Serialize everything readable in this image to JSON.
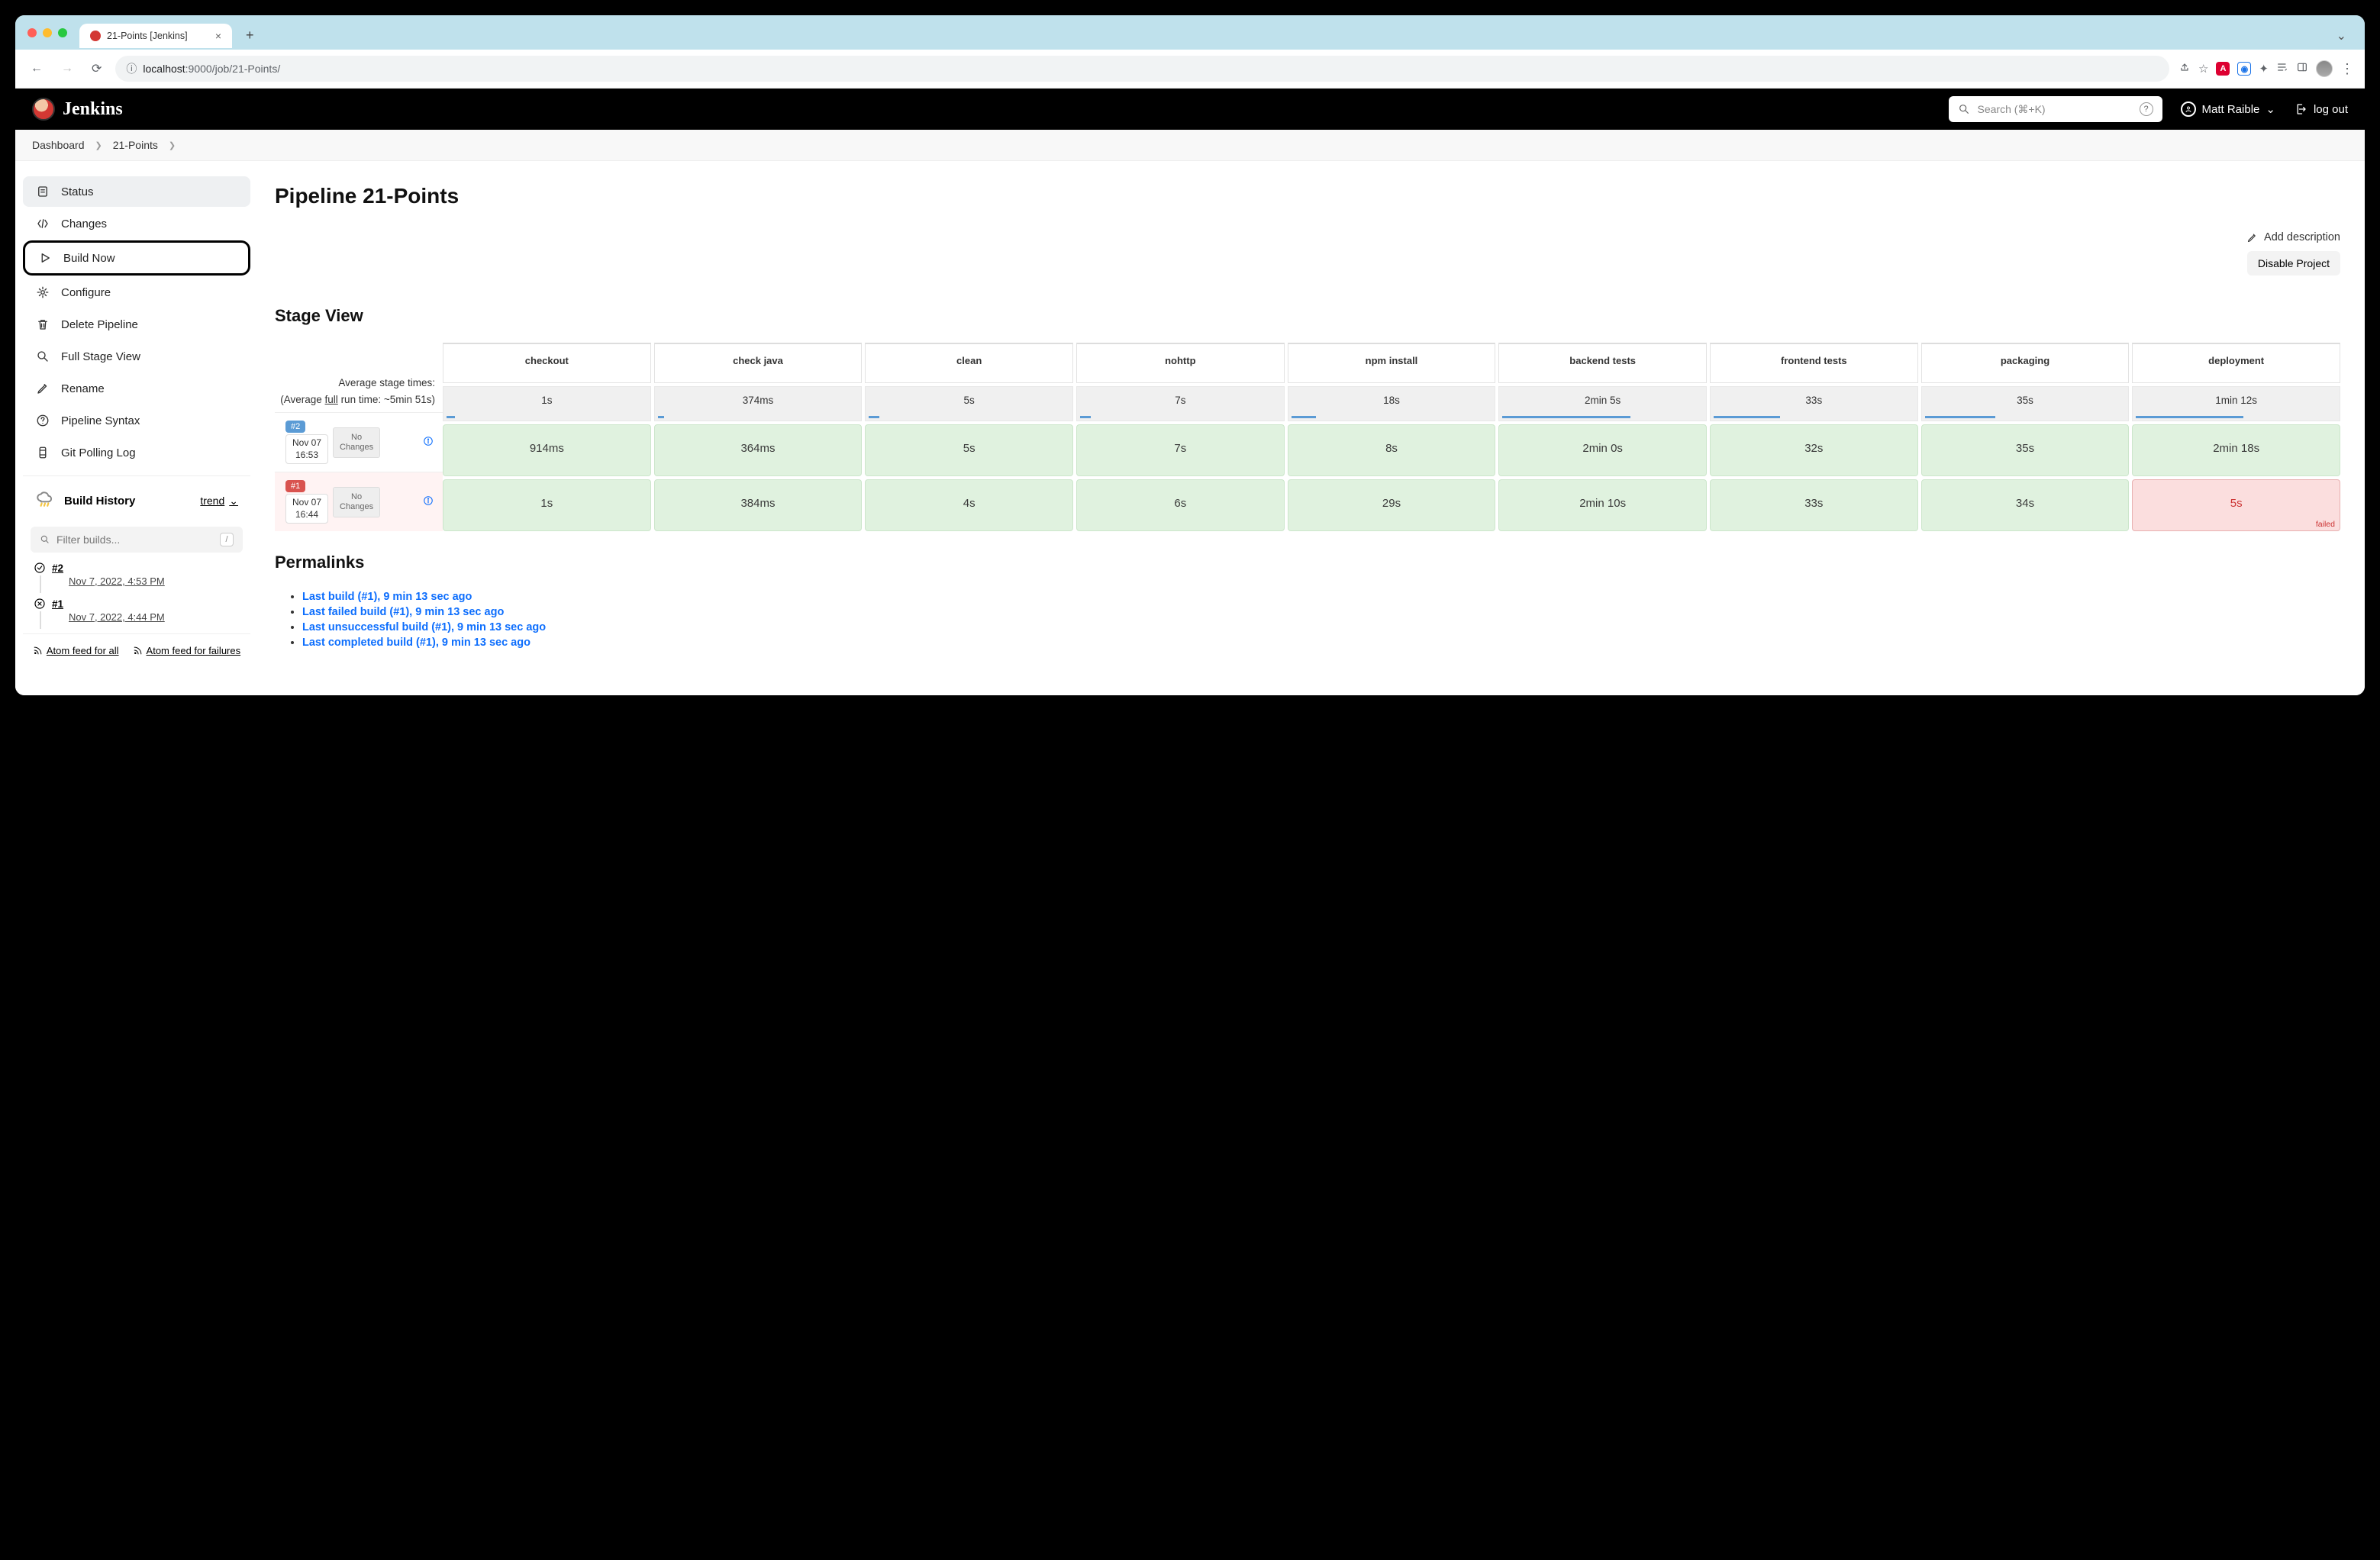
{
  "browser": {
    "tab_title": "21-Points [Jenkins]",
    "url_host": "localhost",
    "url_port": ":9000",
    "url_path": "/job/21-Points/"
  },
  "header": {
    "brand": "Jenkins",
    "search_placeholder": "Search (⌘+K)",
    "user": "Matt Raible",
    "logout": "log out"
  },
  "crumbs": [
    "Dashboard",
    "21-Points"
  ],
  "sidebar": {
    "items": [
      {
        "label": "Status",
        "icon": "status-icon"
      },
      {
        "label": "Changes",
        "icon": "changes-icon"
      },
      {
        "label": "Build Now",
        "icon": "play-icon"
      },
      {
        "label": "Configure",
        "icon": "gear-icon"
      },
      {
        "label": "Delete Pipeline",
        "icon": "trash-icon"
      },
      {
        "label": "Full Stage View",
        "icon": "search-icon"
      },
      {
        "label": "Rename",
        "icon": "pencil-icon"
      },
      {
        "label": "Pipeline Syntax",
        "icon": "help-icon"
      },
      {
        "label": "Git Polling Log",
        "icon": "log-icon"
      }
    ],
    "build_history_title": "Build History",
    "trend": "trend",
    "filter_placeholder": "Filter builds...",
    "builds": [
      {
        "num": "#2",
        "status": "success",
        "date": "Nov 7, 2022, 4:53 PM"
      },
      {
        "num": "#1",
        "status": "failed",
        "date": "Nov 7, 2022, 4:44 PM"
      }
    ],
    "atom_all": "Atom feed for all",
    "atom_fail": "Atom feed for failures"
  },
  "page": {
    "title": "Pipeline 21-Points",
    "add_desc": "Add description",
    "disable": "Disable Project",
    "stage_title": "Stage View",
    "perma_title": "Permalinks"
  },
  "stage": {
    "stages": [
      "checkout",
      "check java",
      "clean",
      "nohttp",
      "npm install",
      "backend tests",
      "frontend tests",
      "packaging",
      "deployment"
    ],
    "avg_label1": "Average stage times:",
    "avg_label2a": "(Average ",
    "avg_label2b": "full",
    "avg_label2c": " run time: ~5min 51s)",
    "avg_row": [
      "1s",
      "374ms",
      "5s",
      "7s",
      "18s",
      "2min 5s",
      "33s",
      "35s",
      "1min 12s"
    ],
    "avg_bars_pct": [
      4,
      3,
      5,
      5,
      12,
      62,
      32,
      34,
      52
    ],
    "no_changes": "No Changes",
    "rows": [
      {
        "badge": "#2",
        "badge_color": "blue",
        "date": "Nov 07",
        "time": "16:53",
        "cells": [
          "914ms",
          "364ms",
          "5s",
          "7s",
          "8s",
          "2min 0s",
          "32s",
          "35s",
          "2min 18s"
        ],
        "fail_idx": -1
      },
      {
        "badge": "#1",
        "badge_color": "red",
        "date": "Nov 07",
        "time": "16:44",
        "cells": [
          "1s",
          "384ms",
          "4s",
          "6s",
          "29s",
          "2min 10s",
          "33s",
          "34s",
          "5s"
        ],
        "fail_idx": 8,
        "row_fail": true
      }
    ],
    "failed_label": "failed"
  },
  "permalinks": [
    "Last build (#1), 9 min 13 sec ago",
    "Last failed build (#1), 9 min 13 sec ago",
    "Last unsuccessful build (#1), 9 min 13 sec ago",
    "Last completed build (#1), 9 min 13 sec ago"
  ],
  "colors": {
    "success_cell": "#e0f2df",
    "fail_cell": "#fbdede",
    "link": "#0d6efd",
    "brand_red": "#d33833"
  }
}
